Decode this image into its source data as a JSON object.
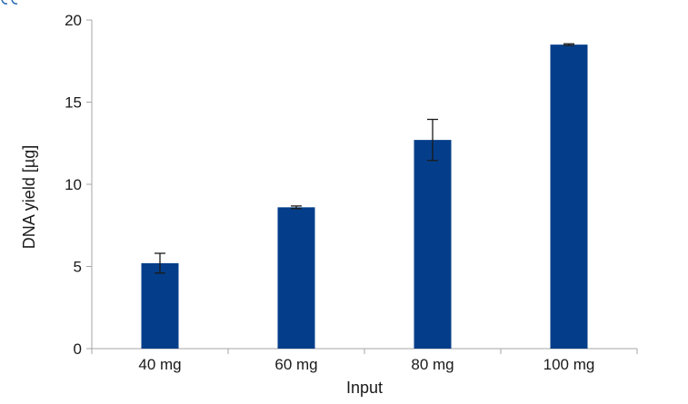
{
  "colors": {
    "bar": "#043e8a",
    "axis": "#a6a6a6",
    "text": "#1a1a1a",
    "fragment": "#2e6fb6"
  },
  "chart_data": {
    "type": "bar",
    "categories": [
      "40 mg",
      "60 mg",
      "80 mg",
      "100 mg"
    ],
    "values": [
      5.2,
      8.6,
      12.7,
      18.5
    ],
    "error": [
      0.6,
      0.08,
      1.25,
      0.05
    ],
    "xlabel": "Input",
    "ylabel": "DNA yield [µg]",
    "ylim": [
      0,
      20
    ],
    "yticks": [
      0,
      5,
      10,
      15,
      20
    ],
    "grid": false,
    "legend": "none"
  }
}
